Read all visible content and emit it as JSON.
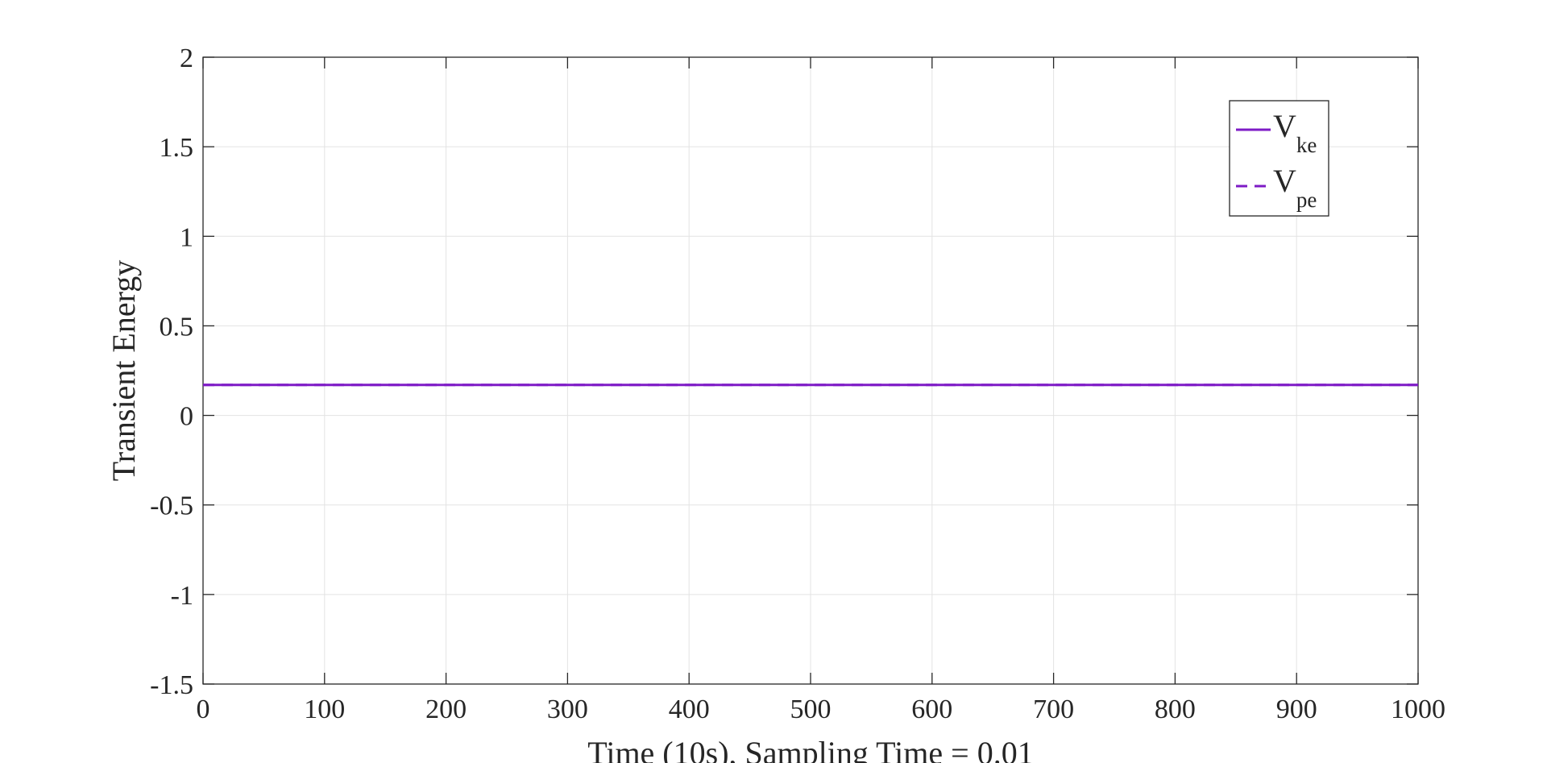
{
  "chart_data": {
    "type": "line",
    "title": "",
    "xlabel": "Time (10s), Sampling Time = 0.01",
    "ylabel": "Transient Energy",
    "xlim": [
      0,
      1000
    ],
    "ylim": [
      -1.5,
      2
    ],
    "xticks": [
      0,
      100,
      200,
      300,
      400,
      500,
      600,
      700,
      800,
      900,
      1000
    ],
    "yticks": [
      -1.5,
      -1,
      -0.5,
      0,
      0.5,
      1,
      1.5,
      2
    ],
    "xtick_labels": [
      "0",
      "100",
      "200",
      "300",
      "400",
      "500",
      "600",
      "700",
      "800",
      "900",
      "1000"
    ],
    "ytick_labels": [
      "-1.5",
      "-1",
      "-0.5",
      "0",
      "0.5",
      "1",
      "1.5",
      "2"
    ],
    "grid": true,
    "legend_position": "top-right",
    "series": [
      {
        "name_main": "V",
        "name_sub": "ke",
        "style": "solid",
        "color": "#7e1bc6",
        "x": [
          0,
          1000
        ],
        "y": [
          0.17,
          0.17
        ]
      },
      {
        "name_main": "V",
        "name_sub": "pe",
        "style": "dashed",
        "color": "#7e1bc6",
        "x": [
          0,
          1000
        ],
        "y": [
          0.17,
          0.17
        ]
      }
    ]
  }
}
